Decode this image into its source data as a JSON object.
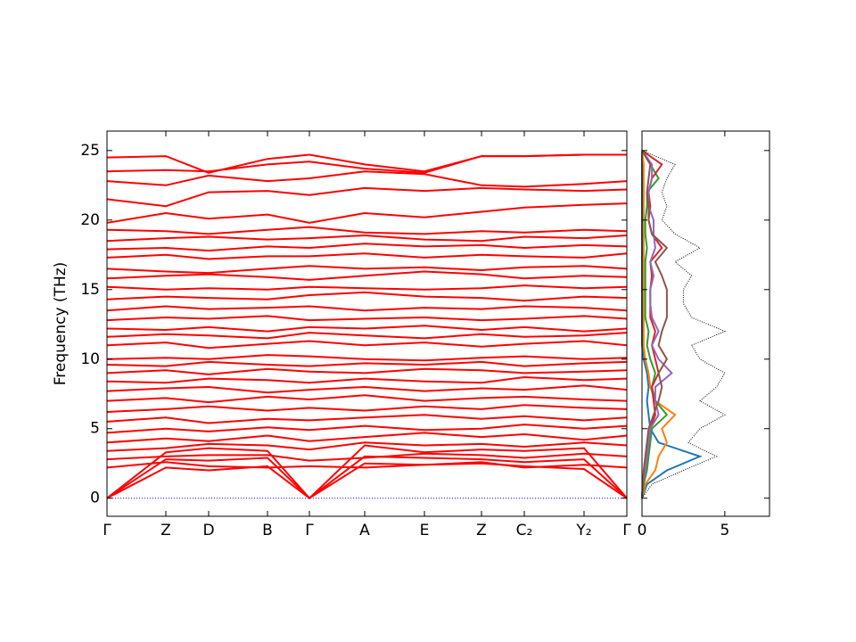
{
  "chart_data": [
    {
      "type": "bands",
      "y_label": "Frequency (THz)",
      "color": "#ff0000",
      "x": [
        0,
        0.66,
        1.14,
        1.8,
        2.27,
        2.89,
        3.56,
        4.2,
        4.68,
        5.35,
        5.83
      ],
      "xlim": [
        0,
        5.83
      ],
      "ylim": [
        -1.3,
        26.4
      ],
      "xticks": [
        {
          "value": 0,
          "label": "Γ"
        },
        {
          "value": 0.66,
          "label": "Z"
        },
        {
          "value": 1.14,
          "label": "D"
        },
        {
          "value": 1.8,
          "label": "B"
        },
        {
          "value": 2.27,
          "label": "Γ"
        },
        {
          "value": 2.89,
          "label": "A"
        },
        {
          "value": 3.56,
          "label": "E"
        },
        {
          "value": 4.2,
          "label": "Z"
        },
        {
          "value": 4.68,
          "label": "C₂"
        },
        {
          "value": 5.35,
          "label": "Y₂"
        },
        {
          "value": 5.83,
          "label": "Γ"
        }
      ],
      "yticks": [
        0,
        5,
        10,
        15,
        20,
        25
      ],
      "zero_line": {
        "value": 0,
        "color": "#0000ff"
      },
      "series": [
        {
          "values": [
            0,
            2.2,
            2.0,
            2.3,
            0,
            2.5,
            2.4,
            2.5,
            2.3,
            2.1,
            0
          ]
        },
        {
          "values": [
            0,
            2.8,
            2.7,
            2.9,
            0,
            3.0,
            2.9,
            2.8,
            2.6,
            2.8,
            0
          ]
        },
        {
          "values": [
            0,
            3.3,
            3.6,
            3.4,
            0,
            3.8,
            3.3,
            3.5,
            3.4,
            3.6,
            0
          ]
        },
        {
          "values": [
            2.2,
            2.6,
            2.3,
            2.2,
            2.3,
            2.2,
            2.4,
            2.6,
            2.2,
            2.4,
            2.2
          ]
        },
        {
          "values": [
            2.8,
            3.0,
            3.1,
            3.1,
            2.7,
            2.9,
            3.2,
            3.1,
            2.9,
            3.2,
            3.0
          ]
        },
        {
          "values": [
            3.4,
            3.6,
            3.9,
            3.8,
            3.5,
            4.0,
            3.8,
            3.9,
            3.7,
            4.0,
            3.8
          ]
        },
        {
          "values": [
            4.0,
            4.3,
            4.1,
            4.5,
            4.1,
            4.4,
            4.7,
            4.4,
            4.6,
            4.2,
            4.5
          ]
        },
        {
          "values": [
            4.7,
            5.0,
            4.8,
            5.1,
            4.9,
            5.2,
            4.9,
            5.0,
            5.3,
            5.0,
            5.2
          ]
        },
        {
          "values": [
            5.5,
            5.8,
            5.4,
            5.7,
            5.6,
            5.8,
            6.0,
            5.7,
            5.9,
            5.6,
            5.8
          ]
        },
        {
          "values": [
            6.2,
            6.4,
            6.6,
            6.3,
            6.5,
            6.3,
            6.6,
            6.4,
            6.7,
            6.5,
            6.4
          ]
        },
        {
          "values": [
            7.0,
            7.2,
            6.9,
            7.3,
            7.1,
            7.4,
            7.0,
            7.2,
            7.3,
            7.1,
            7.0
          ]
        },
        {
          "values": [
            7.7,
            7.9,
            8.0,
            7.6,
            7.8,
            8.0,
            7.7,
            7.9,
            7.8,
            8.1,
            7.8
          ]
        },
        {
          "values": [
            8.4,
            8.3,
            8.6,
            8.5,
            8.3,
            8.6,
            8.4,
            8.3,
            8.7,
            8.5,
            8.6
          ]
        },
        {
          "values": [
            9.0,
            9.2,
            8.9,
            9.3,
            9.1,
            9.0,
            9.3,
            9.2,
            9.0,
            9.1,
            9.2
          ]
        },
        {
          "values": [
            9.6,
            9.5,
            9.8,
            9.6,
            9.5,
            9.7,
            9.6,
            9.8,
            9.5,
            9.7,
            9.8
          ]
        },
        {
          "values": [
            10.0,
            10.1,
            10.0,
            10.3,
            10.2,
            10.0,
            9.9,
            10.1,
            10.2,
            10.0,
            10.1
          ]
        },
        {
          "values": [
            11.0,
            11.2,
            10.8,
            11.1,
            11.3,
            11.0,
            11.2,
            10.9,
            11.1,
            11.3,
            11.0
          ]
        },
        {
          "values": [
            11.6,
            11.8,
            11.7,
            11.5,
            11.9,
            11.7,
            11.5,
            11.8,
            11.6,
            11.7,
            11.9
          ]
        },
        {
          "values": [
            12.2,
            12.1,
            12.3,
            12.0,
            12.3,
            12.2,
            12.4,
            12.1,
            12.3,
            12.0,
            12.2
          ]
        },
        {
          "values": [
            12.8,
            13.0,
            12.9,
            13.1,
            12.8,
            12.9,
            13.0,
            12.8,
            12.9,
            13.1,
            12.9
          ]
        },
        {
          "values": [
            13.5,
            13.8,
            13.6,
            13.7,
            13.8,
            13.5,
            13.7,
            13.6,
            13.8,
            13.7,
            13.5
          ]
        },
        {
          "values": [
            14.3,
            14.5,
            14.4,
            14.3,
            14.6,
            14.8,
            14.5,
            14.4,
            14.2,
            14.5,
            14.4
          ]
        },
        {
          "values": [
            15.2,
            15.0,
            15.1,
            15.0,
            15.2,
            15.1,
            15.0,
            15.1,
            15.3,
            15.1,
            15.2
          ]
        },
        {
          "values": [
            15.8,
            16.0,
            16.1,
            15.9,
            15.7,
            16.0,
            16.3,
            16.1,
            15.8,
            16.0,
            15.9
          ]
        },
        {
          "values": [
            16.5,
            16.3,
            16.2,
            16.5,
            16.7,
            16.5,
            16.6,
            16.4,
            16.6,
            16.7,
            16.5
          ]
        },
        {
          "values": [
            17.3,
            17.5,
            17.2,
            17.4,
            17.4,
            17.6,
            17.3,
            17.5,
            17.4,
            17.3,
            17.6
          ]
        },
        {
          "values": [
            17.9,
            18.0,
            17.8,
            18.1,
            18.0,
            18.3,
            18.1,
            18.2,
            18.0,
            18.2,
            18.1
          ]
        },
        {
          "values": [
            18.5,
            18.7,
            18.8,
            18.6,
            18.7,
            18.9,
            18.6,
            18.5,
            18.8,
            18.7,
            18.9
          ]
        },
        {
          "values": [
            19.3,
            19.2,
            19.0,
            19.3,
            19.5,
            19.1,
            19.0,
            19.2,
            19.1,
            19.3,
            19.2
          ]
        },
        {
          "values": [
            19.8,
            20.5,
            20.1,
            20.4,
            19.8,
            20.5,
            20.2,
            20.6,
            20.9,
            21.1,
            21.2
          ]
        },
        {
          "values": [
            21.5,
            21.0,
            22.0,
            22.1,
            21.8,
            22.3,
            22.1,
            22.3,
            22.2,
            22.1,
            22.2
          ]
        },
        {
          "values": [
            22.8,
            22.5,
            23.2,
            22.8,
            23.0,
            23.5,
            23.3,
            22.5,
            22.4,
            22.6,
            22.8
          ]
        },
        {
          "values": [
            23.5,
            23.6,
            23.5,
            24.0,
            24.2,
            23.7,
            23.4,
            24.6,
            24.6,
            24.7,
            24.7
          ]
        },
        {
          "values": [
            24.5,
            24.6,
            23.4,
            24.4,
            24.7,
            24.0,
            23.5,
            24.6,
            24.6,
            24.7,
            24.7
          ]
        }
      ]
    },
    {
      "type": "dos",
      "xlim": [
        0,
        7.7
      ],
      "xticks": [
        0,
        5
      ],
      "frequencies": [
        0,
        1,
        2,
        3,
        4,
        5,
        6,
        7,
        8,
        9,
        10,
        11,
        12,
        13,
        14,
        15,
        16,
        17,
        18,
        19,
        20,
        21,
        22,
        23,
        24,
        25
      ],
      "series": [
        {
          "color": "#1f77b4",
          "values": [
            0,
            0.3,
            1.5,
            3.5,
            1,
            0.5,
            0.4,
            0.3,
            0.4,
            0.3,
            0.1,
            0,
            0,
            0,
            0,
            0,
            0,
            0,
            0,
            0,
            0,
            0,
            0,
            0,
            0,
            0
          ]
        },
        {
          "color": "#ff7f0e",
          "values": [
            0,
            0.2,
            0.8,
            1,
            1.5,
            1.2,
            2,
            0.8,
            0.5,
            0.4,
            0.2,
            0.1,
            0.1,
            0.1,
            0.1,
            0.1,
            0.1,
            0.1,
            0.1,
            0.1,
            0.1,
            0.1,
            0.1,
            0.1,
            0.1,
            0
          ]
        },
        {
          "color": "#2ca02c",
          "values": [
            0,
            0.1,
            0.3,
            0.4,
            0.5,
            0.6,
            1.5,
            0.8,
            0.6,
            0.8,
            0.5,
            0.3,
            0.4,
            0.2,
            0.2,
            0.2,
            0.2,
            0.2,
            0.3,
            0.2,
            0.2,
            0.3,
            0.3,
            1,
            0.5,
            0
          ]
        },
        {
          "color": "#d62728",
          "values": [
            0,
            0.05,
            0.2,
            0.3,
            0.4,
            0.5,
            0.8,
            0.7,
            0.6,
            1,
            0.8,
            0.6,
            0.8,
            0.5,
            0.5,
            0.5,
            0.6,
            0.5,
            1.2,
            0.6,
            0.4,
            0.5,
            0.4,
            0.6,
            1.2,
            0
          ]
        },
        {
          "color": "#9467bd",
          "values": [
            0,
            0.05,
            0.2,
            0.3,
            0.4,
            0.5,
            1,
            0.8,
            0.8,
            1.8,
            1,
            0.6,
            1,
            0.6,
            0.5,
            0.5,
            0.7,
            0.5,
            0.8,
            0.7,
            0.7,
            0.4,
            0.4,
            0.6,
            0.6,
            0
          ]
        },
        {
          "color": "#8c564b",
          "values": [
            0,
            0.05,
            0.1,
            0.2,
            0.3,
            0.4,
            0.7,
            1,
            1.2,
            1,
            1.5,
            1,
            1.2,
            1.5,
            1.5,
            1.5,
            1.2,
            0.8,
            1.5,
            0.6,
            0.4,
            0.4,
            0.3,
            0.4,
            0.5,
            0
          ]
        },
        {
          "color": "#000000",
          "style": "dotted",
          "values": [
            0,
            0.6,
            2.5,
            4.5,
            2.8,
            3.5,
            5,
            3.5,
            4.5,
            5,
            3.5,
            3,
            5,
            3,
            2.5,
            2.5,
            3,
            2,
            3.5,
            2,
            1.2,
            1.5,
            1.2,
            1.5,
            2,
            0
          ]
        }
      ]
    }
  ]
}
